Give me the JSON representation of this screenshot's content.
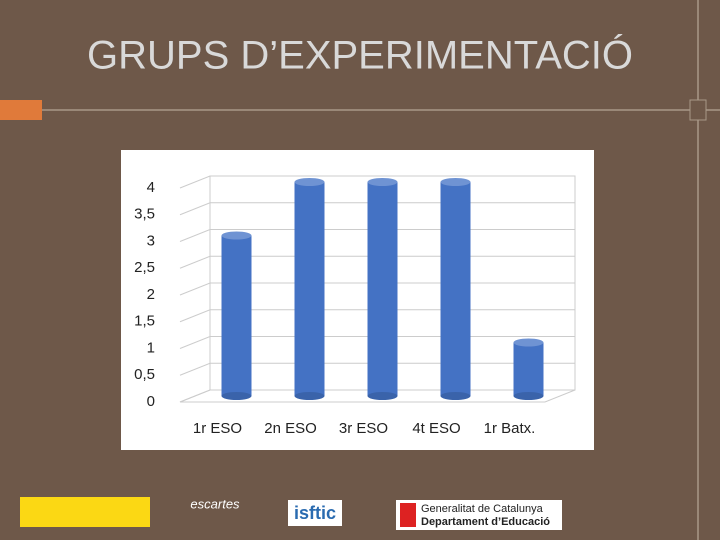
{
  "title": "GRUPS D’EXPERIMENTACIÓ",
  "chart_data": {
    "type": "bar",
    "categories": [
      "1r ESO",
      "2n ESO",
      "3r ESO",
      "4t ESO",
      "1r Batx."
    ],
    "values": [
      3,
      4,
      4,
      4,
      1
    ],
    "color": "#4472c4",
    "ylim": [
      0,
      4
    ],
    "yticks": [
      0,
      {
        "value": 0.5,
        "label": "0,5"
      },
      1,
      {
        "value": 1.5,
        "label": "1,5"
      },
      2,
      {
        "value": 2.5,
        "label": "2,5"
      },
      3,
      {
        "value": 3.5,
        "label": "3,5"
      },
      4
    ],
    "grid": true
  },
  "logos": {
    "descartes": "escartes",
    "isftic": "isftic",
    "generalitat_1": "Generalitat de Catalunya",
    "generalitat_2": "Departament d’Educació"
  }
}
